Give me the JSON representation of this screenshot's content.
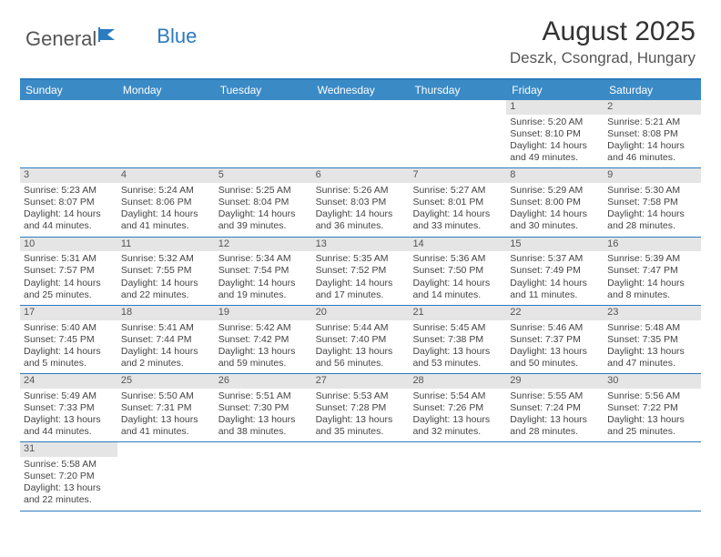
{
  "brand": {
    "word1": "General",
    "word2": "Blue"
  },
  "title": "August 2025",
  "location": "Deszk, Csongrad, Hungary",
  "colors": {
    "header_bar": "#3a8ac6",
    "border": "#2b7bbf",
    "daynum_bg": "#e5e5e5",
    "text": "#444444",
    "brand_blue": "#2b7bbf"
  },
  "dow": [
    "Sunday",
    "Monday",
    "Tuesday",
    "Wednesday",
    "Thursday",
    "Friday",
    "Saturday"
  ],
  "weeks": [
    [
      null,
      null,
      null,
      null,
      null,
      {
        "n": "1",
        "sr": "5:20 AM",
        "ss": "8:10 PM",
        "dl": "14 hours and 49 minutes."
      },
      {
        "n": "2",
        "sr": "5:21 AM",
        "ss": "8:08 PM",
        "dl": "14 hours and 46 minutes."
      }
    ],
    [
      {
        "n": "3",
        "sr": "5:23 AM",
        "ss": "8:07 PM",
        "dl": "14 hours and 44 minutes."
      },
      {
        "n": "4",
        "sr": "5:24 AM",
        "ss": "8:06 PM",
        "dl": "14 hours and 41 minutes."
      },
      {
        "n": "5",
        "sr": "5:25 AM",
        "ss": "8:04 PM",
        "dl": "14 hours and 39 minutes."
      },
      {
        "n": "6",
        "sr": "5:26 AM",
        "ss": "8:03 PM",
        "dl": "14 hours and 36 minutes."
      },
      {
        "n": "7",
        "sr": "5:27 AM",
        "ss": "8:01 PM",
        "dl": "14 hours and 33 minutes."
      },
      {
        "n": "8",
        "sr": "5:29 AM",
        "ss": "8:00 PM",
        "dl": "14 hours and 30 minutes."
      },
      {
        "n": "9",
        "sr": "5:30 AM",
        "ss": "7:58 PM",
        "dl": "14 hours and 28 minutes."
      }
    ],
    [
      {
        "n": "10",
        "sr": "5:31 AM",
        "ss": "7:57 PM",
        "dl": "14 hours and 25 minutes."
      },
      {
        "n": "11",
        "sr": "5:32 AM",
        "ss": "7:55 PM",
        "dl": "14 hours and 22 minutes."
      },
      {
        "n": "12",
        "sr": "5:34 AM",
        "ss": "7:54 PM",
        "dl": "14 hours and 19 minutes."
      },
      {
        "n": "13",
        "sr": "5:35 AM",
        "ss": "7:52 PM",
        "dl": "14 hours and 17 minutes."
      },
      {
        "n": "14",
        "sr": "5:36 AM",
        "ss": "7:50 PM",
        "dl": "14 hours and 14 minutes."
      },
      {
        "n": "15",
        "sr": "5:37 AM",
        "ss": "7:49 PM",
        "dl": "14 hours and 11 minutes."
      },
      {
        "n": "16",
        "sr": "5:39 AM",
        "ss": "7:47 PM",
        "dl": "14 hours and 8 minutes."
      }
    ],
    [
      {
        "n": "17",
        "sr": "5:40 AM",
        "ss": "7:45 PM",
        "dl": "14 hours and 5 minutes."
      },
      {
        "n": "18",
        "sr": "5:41 AM",
        "ss": "7:44 PM",
        "dl": "14 hours and 2 minutes."
      },
      {
        "n": "19",
        "sr": "5:42 AM",
        "ss": "7:42 PM",
        "dl": "13 hours and 59 minutes."
      },
      {
        "n": "20",
        "sr": "5:44 AM",
        "ss": "7:40 PM",
        "dl": "13 hours and 56 minutes."
      },
      {
        "n": "21",
        "sr": "5:45 AM",
        "ss": "7:38 PM",
        "dl": "13 hours and 53 minutes."
      },
      {
        "n": "22",
        "sr": "5:46 AM",
        "ss": "7:37 PM",
        "dl": "13 hours and 50 minutes."
      },
      {
        "n": "23",
        "sr": "5:48 AM",
        "ss": "7:35 PM",
        "dl": "13 hours and 47 minutes."
      }
    ],
    [
      {
        "n": "24",
        "sr": "5:49 AM",
        "ss": "7:33 PM",
        "dl": "13 hours and 44 minutes."
      },
      {
        "n": "25",
        "sr": "5:50 AM",
        "ss": "7:31 PM",
        "dl": "13 hours and 41 minutes."
      },
      {
        "n": "26",
        "sr": "5:51 AM",
        "ss": "7:30 PM",
        "dl": "13 hours and 38 minutes."
      },
      {
        "n": "27",
        "sr": "5:53 AM",
        "ss": "7:28 PM",
        "dl": "13 hours and 35 minutes."
      },
      {
        "n": "28",
        "sr": "5:54 AM",
        "ss": "7:26 PM",
        "dl": "13 hours and 32 minutes."
      },
      {
        "n": "29",
        "sr": "5:55 AM",
        "ss": "7:24 PM",
        "dl": "13 hours and 28 minutes."
      },
      {
        "n": "30",
        "sr": "5:56 AM",
        "ss": "7:22 PM",
        "dl": "13 hours and 25 minutes."
      }
    ],
    [
      {
        "n": "31",
        "sr": "5:58 AM",
        "ss": "7:20 PM",
        "dl": "13 hours and 22 minutes."
      },
      null,
      null,
      null,
      null,
      null,
      null
    ]
  ],
  "labels": {
    "sunrise": "Sunrise:",
    "sunset": "Sunset:",
    "daylight": "Daylight:"
  }
}
